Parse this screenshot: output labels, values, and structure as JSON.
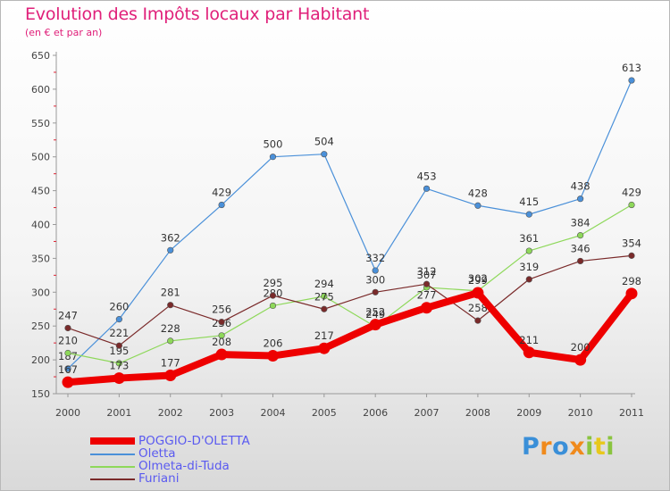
{
  "title": "Evolution des Impôts locaux par Habitant",
  "subtitle": "(en € et par an)",
  "logo_text": "Proxiti",
  "chart_data": {
    "type": "line",
    "title": "Evolution des Impôts locaux par Habitant",
    "subtitle": "(en € et par an)",
    "xlabel": "",
    "ylabel": "",
    "x": [
      "2000",
      "2001",
      "2002",
      "2003",
      "2004",
      "2005",
      "2006",
      "2007",
      "2008",
      "2009",
      "2010",
      "2011"
    ],
    "ylim": [
      150,
      650
    ],
    "yticks": [
      150,
      200,
      250,
      300,
      350,
      400,
      450,
      500,
      550,
      600,
      650
    ],
    "grid": false,
    "legend_position": "bottom-left",
    "series": [
      {
        "name": "POGGIO-D'OLETTA",
        "color": "#ee0000",
        "values": [
          167,
          173,
          177,
          208,
          206,
          217,
          252,
          277,
          299,
          211,
          200,
          298
        ],
        "labels": [
          "167",
          "173",
          "177",
          "208",
          "206",
          "217",
          "252",
          "277",
          "299",
          "211",
          "200",
          "298"
        ]
      },
      {
        "name": "Oletta",
        "color": "#4a90d9",
        "values": [
          187,
          260,
          362,
          429,
          500,
          504,
          332,
          453,
          428,
          415,
          438,
          613
        ],
        "labels": [
          "187",
          "260",
          "362",
          "429",
          "500",
          "504",
          "332",
          "453",
          "428",
          "415",
          "438",
          "613"
        ]
      },
      {
        "name": "Olmeta-di-Tuda",
        "color": "#8ed85a",
        "values": [
          210,
          195,
          228,
          236,
          280,
          294,
          249,
          307,
          302,
          361,
          384,
          429
        ],
        "labels": [
          "210",
          "195",
          "228",
          "236",
          "280",
          "294",
          "249",
          "307",
          "302",
          "361",
          "384",
          "429"
        ]
      },
      {
        "name": "Furiani",
        "color": "#7a2a2a",
        "values": [
          247,
          221,
          281,
          256,
          295,
          275,
          300,
          312,
          258,
          319,
          346,
          354
        ],
        "labels": [
          "247",
          "221",
          "281",
          "256",
          "295",
          "275",
          "300",
          "312",
          "258",
          "319",
          "346",
          "354"
        ]
      }
    ]
  }
}
